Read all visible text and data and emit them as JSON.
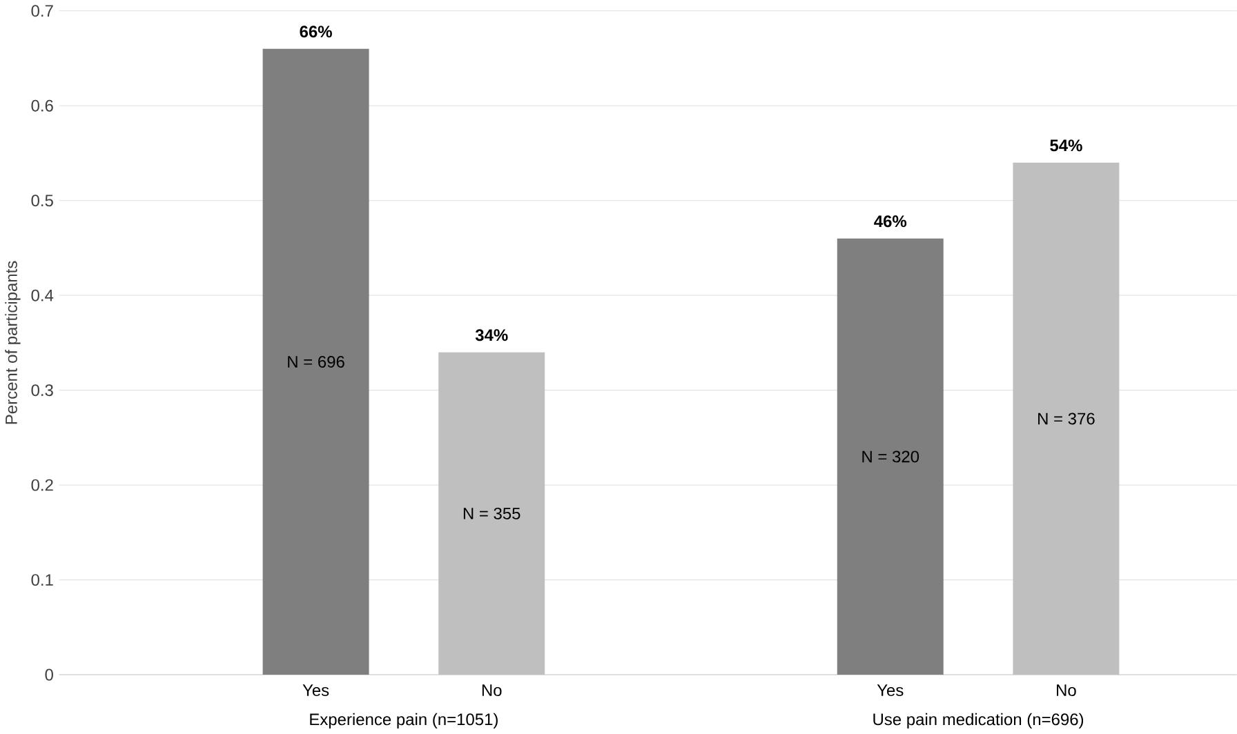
{
  "chart_data": {
    "type": "bar",
    "ylabel": "Percent of participants",
    "categories": [
      "Experience pain (n=1051)",
      "Use pain medication (n=696)"
    ],
    "series": [
      {
        "name": "Yes",
        "color": "#7f7f7f",
        "values": [
          0.66,
          0.46
        ],
        "value_labels": [
          "66%",
          "46%"
        ]
      },
      {
        "name": "No",
        "color": "#bfbfbf",
        "values": [
          0.34,
          0.54
        ],
        "value_labels": [
          "34%",
          "54%"
        ]
      }
    ],
    "ylim": [
      0,
      0.7
    ],
    "yticks": [
      0,
      0.1,
      0.2,
      0.3,
      0.4,
      0.5,
      0.6,
      0.7
    ],
    "grid": "y",
    "annotations": [
      "N = 696",
      "N = 355",
      "N = 320",
      "N = 376"
    ]
  }
}
